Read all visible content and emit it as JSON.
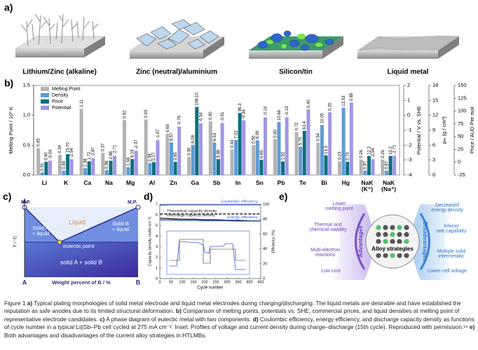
{
  "panel_labels": [
    "a)",
    "b)",
    "c)",
    "d)",
    "e)"
  ],
  "morphologies": [
    "Lithium/Zinc (alkaline)",
    "Zinc (neutral)/aluminium",
    "Silicon/tin",
    "Liquid metal"
  ],
  "chart_data": [
    {
      "type": "bar",
      "legend": "upper left",
      "ylabel": "Melting Point / 10³ K",
      "y2label": "Potential / V vs. SHE",
      "y3label": "ρₘ (g / cm³)",
      "y4label": "Price / AUD Per mol",
      "categories": [
        "Li",
        "K",
        "Ca",
        "Na",
        "Mg",
        "Al",
        "Zn",
        "Ga",
        "Sb",
        "In",
        "Sn",
        "Pb",
        "Te",
        "Bi",
        "Hg",
        "NaK\n(K⁺)",
        "NaK\n(Na⁺)"
      ],
      "ylim": [
        0,
        1.5
      ],
      "yticks": [
        {
          "value": 0,
          "label": "0.0"
        },
        {
          "value": 0.5,
          "label": "0.5"
        },
        {
          "value": 1,
          "label": "1.0"
        },
        {
          "value": 1.5,
          "label": "1.5"
        }
      ],
      "y2lim": [
        -4,
        2
      ],
      "y2ticks": [
        -4,
        -3,
        -2,
        -1,
        0,
        1,
        2
      ],
      "y3lim": [
        0,
        18
      ],
      "y3ticks": [
        0,
        3,
        6,
        9,
        12,
        15,
        18
      ],
      "y4lim": [
        -25,
        150
      ],
      "y4ticks": [
        -25,
        0,
        25,
        50,
        75,
        100,
        125,
        150
      ],
      "series": [
        {
          "name": "Melting Point",
          "color": "#b3b3b3",
          "axis": "y",
          "values": [
            0.45,
            0.34,
            1.11,
            0.37,
            0.92,
            0.93,
            0.69,
            0.3,
            0.9,
            0.43,
            0.5,
            0.6,
            0.72,
            0.54,
            0.23,
            0.26,
            0.26
          ],
          "value_labels": [
            "0.45",
            "0.34",
            "1.11",
            "0.37",
            "0.92",
            "0.93",
            "0.69",
            "0.30",
            "0.90",
            "0.43",
            "0.50",
            "0.60",
            "0.72",
            "0.54",
            "0.23",
            "0.26",
            "0.26"
          ]
        },
        {
          "name": "Density",
          "color": "#5f9bd6",
          "axis": "y3",
          "values": [
            0.51,
            0.89,
            1.38,
            0.96,
            1.58,
            2.38,
            6.57,
            6.08,
            6.53,
            7.02,
            6.99,
            10.66,
            5.7,
            10.05,
            13.53,
            0.87,
            0.87
          ],
          "value_labels": [
            "0.51",
            "0.89",
            "1.38",
            "0.96",
            "1.58",
            "2.38",
            "6.57",
            "6.08",
            "6.53",
            "7.02",
            "6.99",
            "10.66",
            "5.70",
            "10.05",
            "13.53",
            "0.87",
            "0.87"
          ]
        },
        {
          "name": "Price",
          "color": "#0d6f80",
          "axis": "y4",
          "values": [
            0.9,
            15.7,
            1.72,
            2.86,
            6.18,
            0.17,
            0.85,
            108.1,
            5.86,
            96.3,
            4.65,
            1.52,
            61.4,
            13.3,
            0.74,
            12.2,
            12.2
          ],
          "value_labels": [
            "0.90",
            "15.70",
            "1.72",
            "2.86",
            "6.18",
            "0.17",
            "0.85",
            "108.10",
            "5.86",
            "96.3",
            "4.65",
            "1.52",
            "61.4",
            "13.3",
            "0.74",
            "12.2",
            "12.2"
          ]
        },
        {
          "name": "Potential",
          "color": "#a196e6",
          "axis": "y2",
          "values": [
            -3.04,
            -2.94,
            -2.87,
            -2.71,
            -2.37,
            -1.67,
            -0.76,
            -0.54,
            -0.51,
            -0.34,
            -0.14,
            -0.13,
            0.4,
            0.2,
            0.85,
            -2.94,
            -2.71
          ],
          "value_labels": [
            "-3.04",
            "-2.94",
            "-2.87",
            "-2.71",
            "-2.37",
            "-1.67",
            "-0.76",
            "-0.54",
            "-0.51",
            "-0.34",
            "-0.14",
            "-0.13",
            "0.40",
            "0.20",
            "0.85",
            "-2.94",
            "-2.71"
          ]
        }
      ]
    },
    {
      "type": "line",
      "xlabel": "Cycle number",
      "ylabel": "Capacity density (mAh cm⁻²)",
      "y2label": "Efficiency (%)",
      "x": [
        1,
        50,
        100,
        150,
        200,
        250,
        300,
        350,
        400,
        450
      ],
      "xlim": [
        0,
        450
      ],
      "xticks": [
        0,
        50,
        100,
        150,
        200,
        250,
        300,
        350,
        400,
        450
      ],
      "ylim": [
        0,
        7
      ],
      "yticks": [
        0,
        1,
        2,
        3,
        4,
        5,
        6,
        7
      ],
      "y2lim": [
        0,
        100
      ],
      "y2ticks": [
        0,
        20,
        40,
        60,
        80,
        100
      ],
      "series": [
        {
          "name": "Coulombic efficiency",
          "color": "#3a5bd6",
          "axis": "y2",
          "values": [
            99,
            99.5,
            99.5,
            99.5,
            99.5,
            99.5,
            99.5,
            99.5,
            99.5,
            99.5
          ]
        },
        {
          "name": "Theoretical capacity density",
          "color": "#222222",
          "dashed": true,
          "axis": "y",
          "values": [
            6.1,
            6.1,
            6.1,
            6.1,
            6.1,
            6.1,
            6.1,
            6.1,
            6.1,
            6.1
          ]
        },
        {
          "name": "Discharge capacity density",
          "color": "#222222",
          "axis": "y",
          "values": [
            5.7,
            5.65,
            5.6,
            5.6,
            5.55,
            5.55,
            5.5,
            5.5,
            5.45,
            5.45
          ]
        },
        {
          "name": "Energy efficiency",
          "color": "#3a5bd6",
          "axis": "y2",
          "values": [
            79,
            79,
            78.5,
            78.5,
            78,
            78,
            78,
            77.5,
            77.5,
            77.5
          ]
        }
      ]
    }
  ],
  "phase_diagram": {
    "mp_left": "M.P.",
    "mp_right": "M.P.",
    "liquid": "Liquid",
    "solid_a_liquid": "Solid A\n+ liquid",
    "solid_b_liquid": "Solid B\n+ liquid",
    "eutectic": "eutectic point",
    "solid_ab": "solid A + solid B",
    "y_axis": "T / °C",
    "left_end": "A",
    "right_end": "B",
    "x_axis": "Weight percent of B / %"
  },
  "alloy_diagram": {
    "center": "Alloy strategies",
    "advantages": "Advantages",
    "disadvantages": "Disadvantages",
    "advantage_items": [
      "Lower\nmelting point",
      "Thermal and\nchemical stability",
      "Multi-electron\nreactions",
      "Low cost"
    ],
    "disadvantage_items": [
      "Decreased\nenergy density",
      "Inferior\nrate capability",
      "Multiple solid\nintermetallic",
      "Lower cell voltage"
    ]
  },
  "caption": [
    {
      "text": "Figure 1 "
    },
    {
      "text": "a)",
      "bold": true
    },
    {
      "text": " Typical plating morphologies of solid metal electrode and liquid metal electrodes during charging/discharging. The liquid metals are desirable and have established the reputation as safe anodes due to its limited structural deformation. "
    },
    {
      "text": "b)",
      "bold": true
    },
    {
      "text": " Comparison of melting points, potentials vs. SHE, commercial prices, and liquid densities at melting point of representative electrode candidates. "
    },
    {
      "text": "c)",
      "bold": true
    },
    {
      "text": " A phase diagram of eutectic metal with two components. "
    },
    {
      "text": "d)",
      "bold": true
    },
    {
      "text": " Coulombic efficiency, energy efficiency, and discharge capacity density as functions of cycle number in a typical Li||Sb–Pb cell cycled at 275 mA cm⁻². Inset: Profiles of voltage and current density during charge–discharge (15th cycle). Reproduced with permission.¹⁸ "
    },
    {
      "text": "e)",
      "bold": true
    },
    {
      "text": " Both advantages and disadvantages of the current alloy strategies in HTLMBs."
    }
  ]
}
